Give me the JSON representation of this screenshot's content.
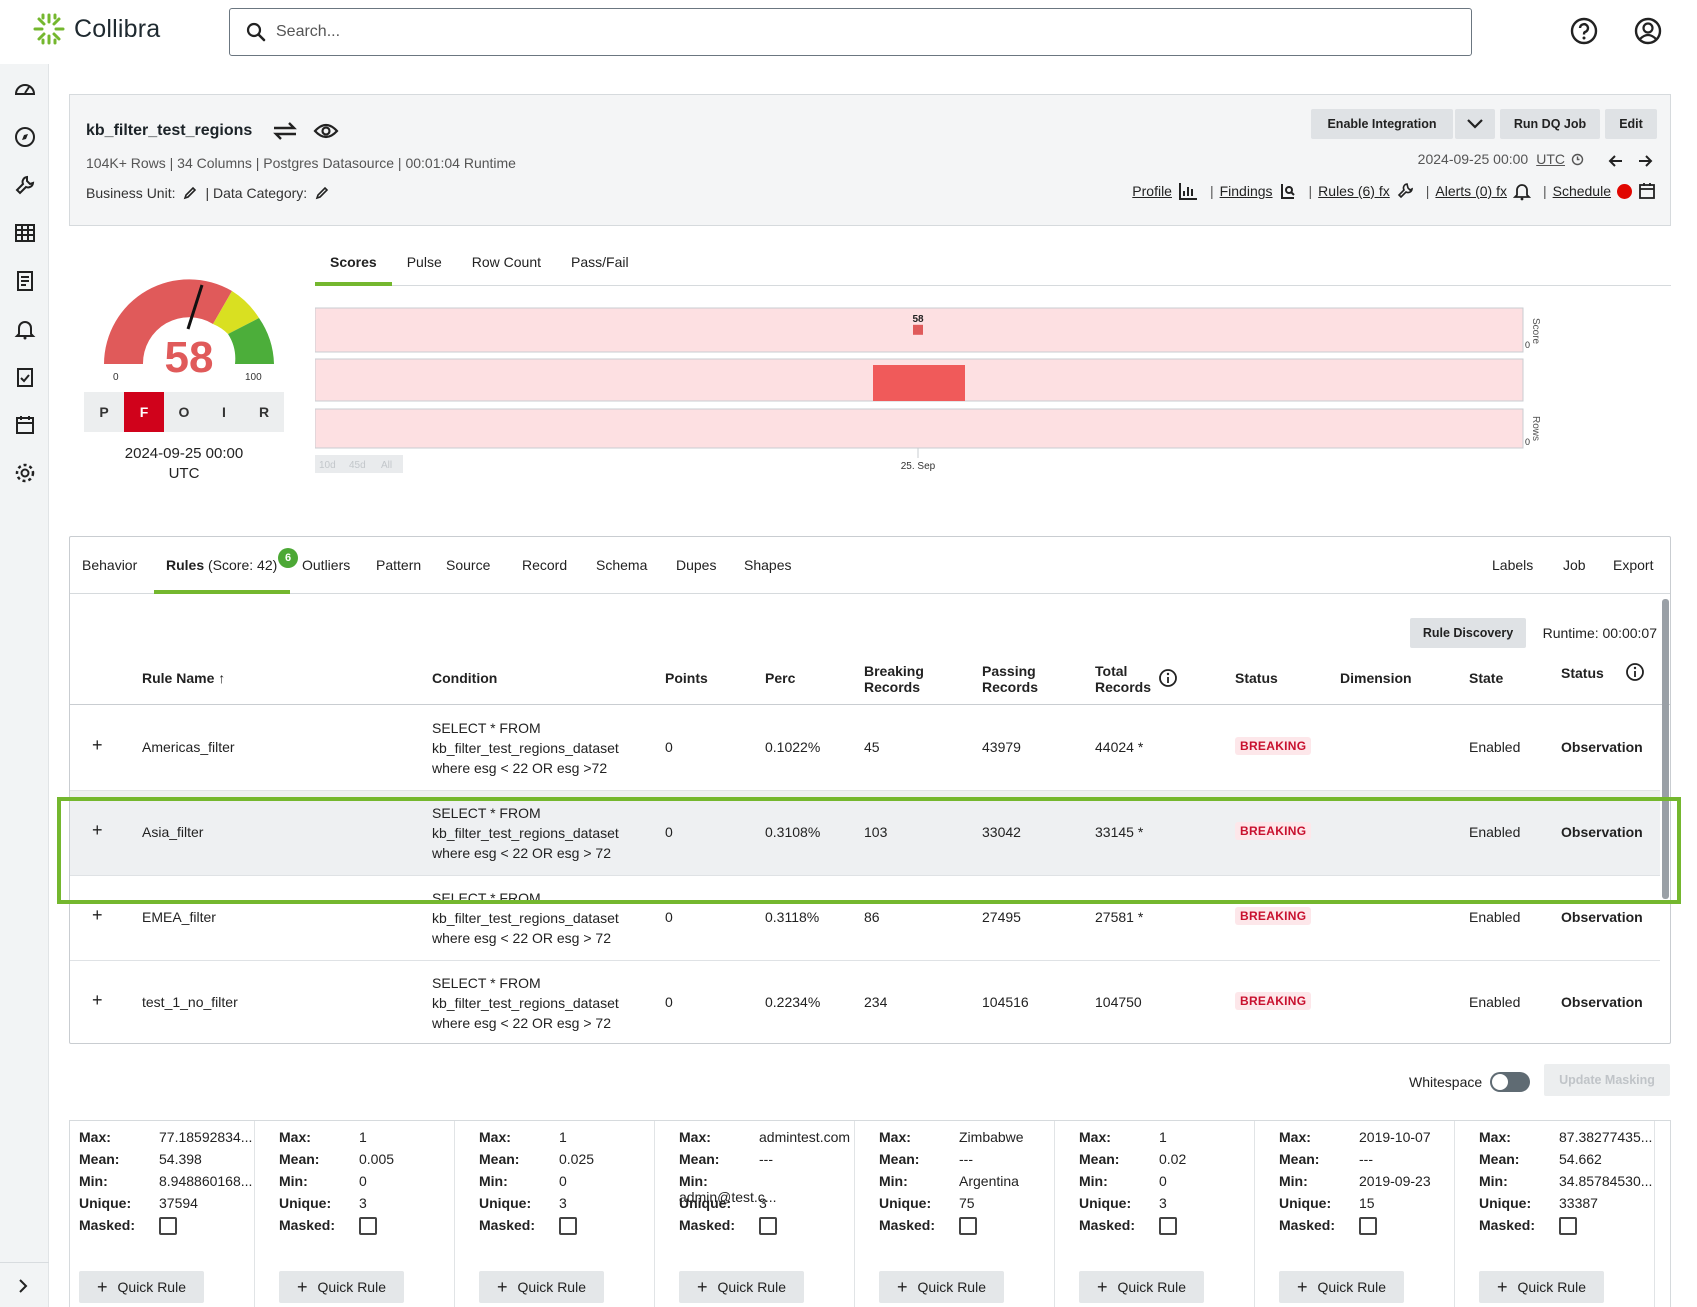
{
  "brand": {
    "name": "Collibra",
    "accent": "#74b72e"
  },
  "search": {
    "placeholder": "Search..."
  },
  "dataset": {
    "name": "kb_filter_test_regions",
    "meta": "104K+ Rows | 34 Columns | Postgres Datasource | 00:01:04 Runtime",
    "business_unit_label": "Business Unit:",
    "data_category_label": "| Data Category:",
    "enable_integration": "Enable Integration",
    "run_job": "Run DQ Job",
    "edit": "Edit",
    "time": "2024-09-25 00:00",
    "tz": "UTC",
    "links": {
      "profile": "Profile",
      "findings": "Findings",
      "rules": "Rules (6) fx",
      "alerts": "Alerts (0) fx",
      "schedule": "Schedule"
    }
  },
  "gauge": {
    "score": "58",
    "min": "0",
    "max": "100",
    "pfoir": [
      "P",
      "F",
      "O",
      "I",
      "R"
    ],
    "active": "F",
    "date": "2024-09-25 00:00",
    "tz": "UTC",
    "needle_value": 58
  },
  "score_tabs": [
    "Scores",
    "Pulse",
    "Row Count",
    "Pass/Fail"
  ],
  "chart_data": {
    "type": "bar",
    "x": [
      "25. Sep"
    ],
    "series": [
      {
        "name": "Score",
        "values": [
          58
        ]
      }
    ],
    "labels": {
      "score_value": "58",
      "score_axis": "Score",
      "rows_axis": "Rows",
      "zero": "0",
      "xtick": "25. Sep"
    },
    "range_buttons": [
      "10d",
      "45d",
      "All"
    ]
  },
  "panel_tabs": {
    "behavior": "Behavior",
    "rules": "Rules",
    "rules_score": "(Score: 42)",
    "rules_badge": "6",
    "outliers": "Outliers",
    "pattern": "Pattern",
    "source": "Source",
    "record": "Record",
    "schema": "Schema",
    "dupes": "Dupes",
    "shapes": "Shapes",
    "labels": "Labels",
    "job": "Job",
    "export": "Export"
  },
  "rule_discovery": "Rule Discovery",
  "runtime": "Runtime: 00:00:07",
  "columns": {
    "rule_name": "Rule Name ↑",
    "condition": "Condition",
    "points": "Points",
    "perc": "Perc",
    "breaking": [
      "Breaking",
      "Records"
    ],
    "passing": [
      "Passing",
      "Records"
    ],
    "total": [
      "Total",
      "Records"
    ],
    "status": "Status",
    "dimension": "Dimension",
    "state": "State",
    "status2": "Status"
  },
  "rules": [
    {
      "name": "Americas_filter",
      "cond": [
        "SELECT * FROM",
        "kb_filter_test_regions_dataset",
        "where esg < 22 OR esg >72"
      ],
      "points": "0",
      "perc": "0.1022%",
      "breaking": "45",
      "passing": "43979",
      "total": "44024 *",
      "status": "BREAKING",
      "state": "Enabled",
      "status2": "Observation"
    },
    {
      "name": "Asia_filter",
      "cond": [
        "SELECT * FROM",
        "kb_filter_test_regions_dataset",
        "where esg < 22 OR esg > 72"
      ],
      "points": "0",
      "perc": "0.3108%",
      "breaking": "103",
      "passing": "33042",
      "total": "33145 *",
      "status": "BREAKING",
      "state": "Enabled",
      "status2": "Observation"
    },
    {
      "name": "EMEA_filter",
      "cond": [
        "SELECT * FROM",
        "kb_filter_test_regions_dataset",
        "where esg < 22 OR esg > 72"
      ],
      "points": "0",
      "perc": "0.3118%",
      "breaking": "86",
      "passing": "27495",
      "total": "27581 *",
      "status": "BREAKING",
      "state": "Enabled",
      "status2": "Observation"
    },
    {
      "name": "test_1_no_filter",
      "cond": [
        "SELECT * FROM",
        "kb_filter_test_regions_dataset",
        "where esg < 22 OR esg > 72"
      ],
      "points": "0",
      "perc": "0.2234%",
      "breaking": "234",
      "passing": "104516",
      "total": "104750",
      "status": "BREAKING",
      "state": "Enabled",
      "status2": "Observation"
    }
  ],
  "whitespace_label": "Whitespace",
  "update_masking": "Update Masking",
  "stat_labels": {
    "max": "Max:",
    "mean": "Mean:",
    "min": "Min:",
    "unique": "Unique:",
    "masked": "Masked:"
  },
  "quick_rule": "Quick Rule",
  "stats": [
    {
      "max": "77.18592834...",
      "mean": "54.398",
      "min": "8.948860168...",
      "unique": "37594"
    },
    {
      "max": "1",
      "mean": "0.005",
      "min": "0",
      "unique": "3"
    },
    {
      "max": "1",
      "mean": "0.025",
      "min": "0",
      "unique": "3"
    },
    {
      "max": "admintest.com",
      "mean": "---",
      "min": "admin@test.c...",
      "unique": "3"
    },
    {
      "max": "Zimbabwe",
      "mean": "---",
      "min": "Argentina",
      "unique": "75"
    },
    {
      "max": "1",
      "mean": "0.02",
      "min": "0",
      "unique": "3"
    },
    {
      "max": "2019-10-07",
      "mean": "---",
      "min": "2019-09-23",
      "unique": "15"
    },
    {
      "max": "87.38277435...",
      "mean": "54.662",
      "min": "34.85784530...",
      "unique": "33387"
    }
  ]
}
